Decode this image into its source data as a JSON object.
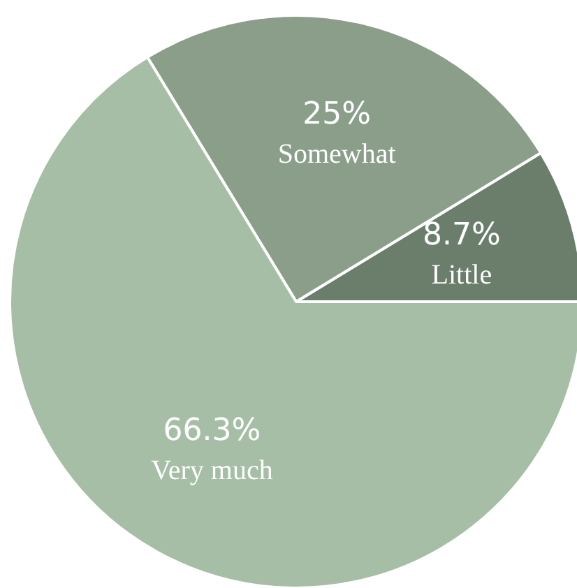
{
  "chart_data": {
    "type": "pie",
    "categories": [
      "Little",
      "Somewhat",
      "Very much"
    ],
    "values": [
      8.7,
      25,
      66.3
    ],
    "value_labels": [
      "8.7%",
      "25%",
      "66.3%"
    ],
    "colors": [
      "#6b7d6b",
      "#8a9e8a",
      "#a6bea6"
    ],
    "legend": false
  }
}
